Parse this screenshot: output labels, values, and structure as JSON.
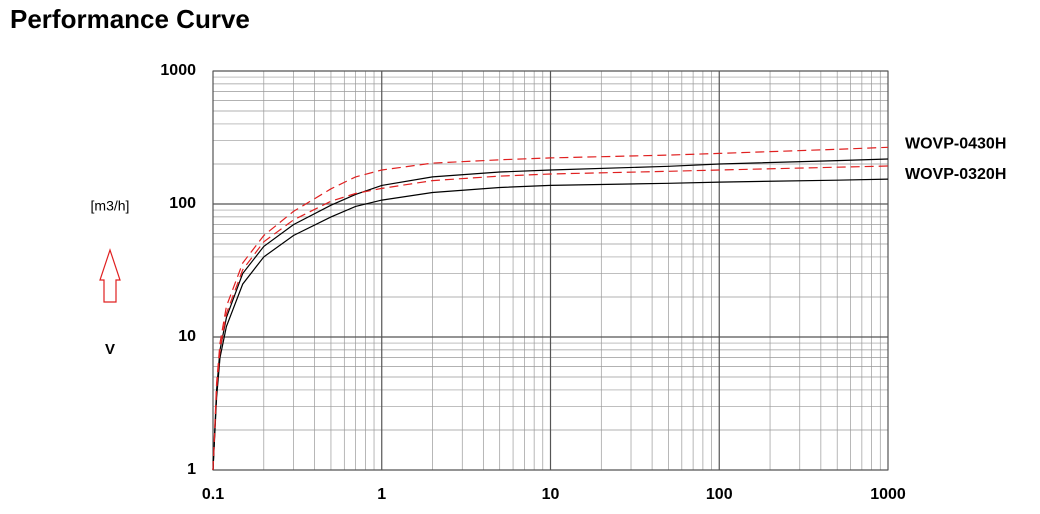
{
  "chart_data": {
    "type": "line",
    "title": "Performance Curve",
    "y_label": "[m3/h]",
    "y_symbol": "V",
    "x_scale": "log",
    "y_scale": "log",
    "grid": true,
    "minor_grid": true,
    "x": [
      0.1,
      0.105,
      0.11,
      0.12,
      0.15,
      0.2,
      0.3,
      0.5,
      0.7,
      1,
      2,
      5,
      10,
      50,
      100,
      500,
      1000
    ],
    "series": [
      {
        "name": "WOVP-0430H",
        "lines": [
          {
            "color": "#000000",
            "style": "solid",
            "values": [
              1,
              4,
              8,
              14,
              30,
              48,
              70,
              98,
              118,
              138,
              160,
              174,
              180,
              192,
              200,
              212,
              218
            ]
          },
          {
            "color": "#e02020",
            "style": "dashed",
            "values": [
              1,
              4.5,
              9,
              17,
              36,
              58,
              88,
              130,
              160,
              180,
              203,
              215,
              222,
              233,
              240,
              258,
              267
            ]
          }
        ]
      },
      {
        "name": "WOVP-0320H",
        "lines": [
          {
            "color": "#000000",
            "style": "solid",
            "values": [
              1,
              3.5,
              7,
              12,
              25,
              40,
              58,
              80,
              96,
              107,
              122,
              133,
              138,
              143,
              146,
              151,
              154
            ]
          },
          {
            "color": "#e02020",
            "style": "dashed",
            "values": [
              1,
              4,
              8,
              15,
              32,
              52,
              76,
              105,
              120,
              131,
              150,
              162,
              168,
              176,
              180,
              189,
              193
            ]
          }
        ]
      }
    ],
    "xlim": [
      0.1,
      1000
    ],
    "xticks": [
      0.1,
      1,
      10,
      100,
      1000
    ],
    "ylim": [
      1,
      1000
    ],
    "yticks": [
      1,
      10,
      100,
      1000
    ]
  }
}
